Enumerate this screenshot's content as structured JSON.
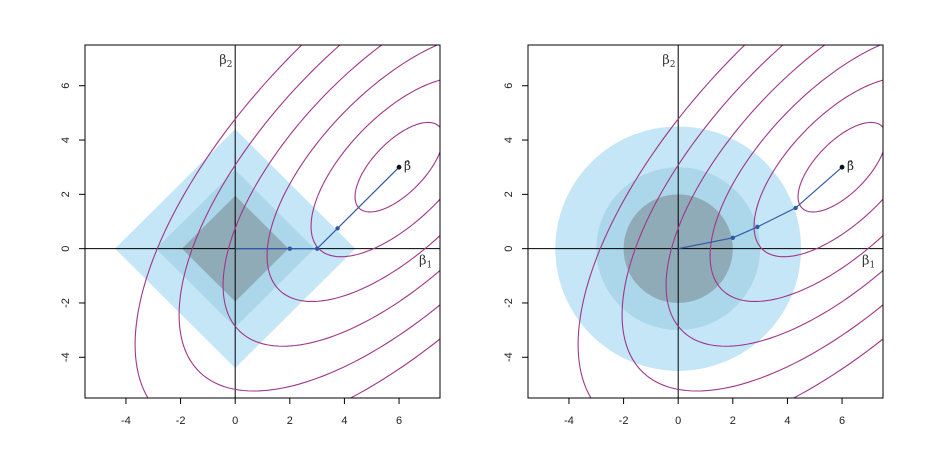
{
  "chart_data": [
    {
      "type": "contour",
      "panel": "lasso",
      "constraint": "diamond",
      "xlim": [
        -5.5,
        7.5
      ],
      "ylim": [
        -5.5,
        7.5
      ],
      "xticks": [
        "-4",
        "-2",
        "0",
        "2",
        "4",
        "6"
      ],
      "yticks": [
        "-4",
        "-2",
        "0",
        "2",
        "4",
        "6"
      ],
      "x_axis_label": "β",
      "x_axis_sub": "1",
      "y_axis_label": "β",
      "y_axis_sub": "2",
      "constraint_levels": [
        4.4,
        2.9,
        1.95
      ],
      "beta_hat": {
        "x": 6,
        "y": 3,
        "label": "β̂"
      },
      "path_points": [
        [
          0,
          0
        ],
        [
          2,
          0
        ],
        [
          3,
          0
        ],
        [
          3.75,
          0.75
        ],
        [
          6,
          3
        ]
      ],
      "marked_points": [
        [
          2,
          0
        ],
        [
          3,
          0
        ],
        [
          3.75,
          0.75
        ],
        [
          6,
          3
        ]
      ],
      "contour_levels": [
        1,
        2,
        3,
        4,
        5,
        6
      ]
    },
    {
      "type": "contour",
      "panel": "ridge",
      "constraint": "circle",
      "xlim": [
        -5.5,
        7.5
      ],
      "ylim": [
        -5.5,
        7.5
      ],
      "xticks": [
        "-4",
        "-2",
        "0",
        "2",
        "4",
        "6"
      ],
      "yticks": [
        "-4",
        "-2",
        "0",
        "2",
        "4",
        "6"
      ],
      "x_axis_label": "β",
      "x_axis_sub": "1",
      "y_axis_label": "β",
      "y_axis_sub": "2",
      "constraint_levels": [
        4.5,
        3.0,
        2.0
      ],
      "beta_hat": {
        "x": 6,
        "y": 3,
        "label": "β̂"
      },
      "path_points": [
        [
          0,
          0
        ],
        [
          2,
          0.4
        ],
        [
          2.9,
          0.8
        ],
        [
          4.3,
          1.5
        ],
        [
          6,
          3
        ]
      ],
      "marked_points": [
        [
          2,
          0.4
        ],
        [
          2.9,
          0.8
        ],
        [
          4.3,
          1.5
        ],
        [
          6,
          3
        ]
      ],
      "contour_levels": [
        1,
        2,
        3,
        4,
        5,
        6
      ]
    }
  ],
  "colors": {
    "constraint_fills": [
      "#c4e6f6",
      "#acd7ea",
      "#8fabb8"
    ],
    "contour": "#a0368a",
    "path": "#2f5aa8",
    "axes": "#000000"
  }
}
